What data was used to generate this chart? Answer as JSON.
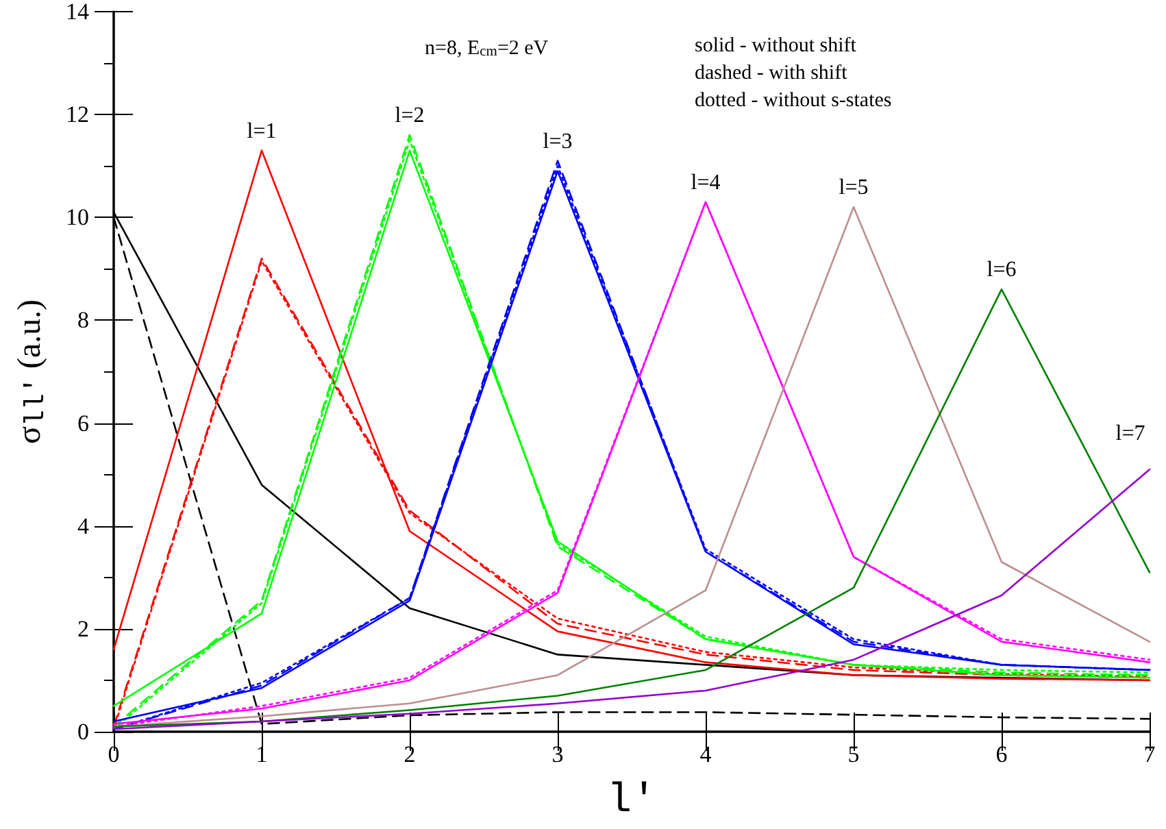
{
  "chart_data": {
    "type": "line",
    "xlabel": "l′",
    "ylabel": "σ$_{ll′}$ (a.u.)",
    "x": [
      0,
      1,
      2,
      3,
      4,
      5,
      6,
      7
    ],
    "xlim": [
      0,
      7
    ],
    "xticks": [
      0,
      1,
      2,
      3,
      4,
      5,
      6,
      7
    ],
    "ylim": [
      0,
      14
    ],
    "yticks": [
      0,
      2,
      4,
      6,
      8,
      10,
      12,
      14
    ],
    "grid": false,
    "marker": "none",
    "annotations": [
      "n=8, E$_{cm}$=2 eV",
      "solid - without shift",
      "dashed - with shift",
      "dotted - without s-states",
      {
        "text": "l=1",
        "x": 1,
        "y": 11.3
      },
      {
        "text": "l=2",
        "x": 2,
        "y": 11.6
      },
      {
        "text": "l=3",
        "x": 3,
        "y": 11.1
      },
      {
        "text": "l=4",
        "x": 4,
        "y": 10.3
      },
      {
        "text": "l=5",
        "x": 5,
        "y": 10.2
      },
      {
        "text": "l=6",
        "x": 6,
        "y": 8.6
      },
      {
        "text": "l=7",
        "x": 7,
        "y": 5.1
      }
    ],
    "series": [
      {
        "color": "#000000",
        "line_style": "solid",
        "values": [
          10.1,
          4.8,
          2.4,
          1.5,
          1.3,
          1.1,
          1.05,
          1.0
        ]
      },
      {
        "color": "#000000",
        "line_style": "dashed",
        "values": [
          10.0,
          0.15,
          0.32,
          0.38,
          0.38,
          0.33,
          0.28,
          0.25
        ]
      },
      {
        "color": "#ff0000",
        "line_style": "solid",
        "values": [
          1.6,
          11.3,
          3.9,
          1.95,
          1.35,
          1.1,
          1.03,
          1.0
        ]
      },
      {
        "color": "#ff0000",
        "line_style": "dashed",
        "values": [
          0.1,
          9.2,
          4.3,
          2.1,
          1.5,
          1.2,
          1.1,
          1.05
        ]
      },
      {
        "color": "#ff0000",
        "line_style": "dotted",
        "values": [
          0.05,
          9.15,
          4.25,
          2.2,
          1.55,
          1.25,
          1.12,
          1.07
        ]
      },
      {
        "color": "#00ff00",
        "line_style": "solid",
        "values": [
          0.5,
          2.3,
          11.3,
          3.7,
          1.8,
          1.3,
          1.1,
          1.05
        ]
      },
      {
        "color": "#00ff00",
        "line_style": "dashed",
        "values": [
          0.1,
          2.55,
          11.6,
          3.6,
          1.8,
          1.3,
          1.15,
          1.1
        ]
      },
      {
        "color": "#00ff00",
        "line_style": "dotted",
        "values": [
          0.05,
          2.5,
          11.5,
          3.65,
          1.85,
          1.3,
          1.2,
          1.15
        ]
      },
      {
        "color": "#0000ff",
        "line_style": "solid",
        "values": [
          0.2,
          0.85,
          2.55,
          10.9,
          3.5,
          1.7,
          1.3,
          1.2
        ]
      },
      {
        "color": "#0000ff",
        "line_style": "dashed",
        "values": [
          0.05,
          0.9,
          2.6,
          11.1,
          3.5,
          1.75,
          1.3,
          1.2
        ]
      },
      {
        "color": "#0000ff",
        "line_style": "dotted",
        "values": [
          0.05,
          0.95,
          2.6,
          11.0,
          3.55,
          1.8,
          1.3,
          1.2
        ]
      },
      {
        "color": "#ff00ff",
        "line_style": "solid",
        "values": [
          0.15,
          0.45,
          1.0,
          2.7,
          10.3,
          3.4,
          1.75,
          1.35
        ]
      },
      {
        "color": "#ff00ff",
        "line_style": "dotted",
        "values": [
          0.1,
          0.5,
          1.05,
          2.75,
          10.3,
          3.4,
          1.8,
          1.4
        ]
      },
      {
        "color": "#bc8f8f",
        "line_style": "solid",
        "values": [
          0.1,
          0.3,
          0.55,
          1.1,
          2.75,
          10.2,
          3.3,
          1.75
        ]
      },
      {
        "color": "#008000",
        "line_style": "solid",
        "values": [
          0.1,
          0.2,
          0.42,
          0.7,
          1.2,
          2.8,
          8.6,
          3.1
        ]
      },
      {
        "color": "#9400d3",
        "line_style": "solid",
        "values": [
          0.05,
          0.2,
          0.35,
          0.55,
          0.8,
          1.4,
          2.65,
          5.1
        ]
      }
    ]
  }
}
